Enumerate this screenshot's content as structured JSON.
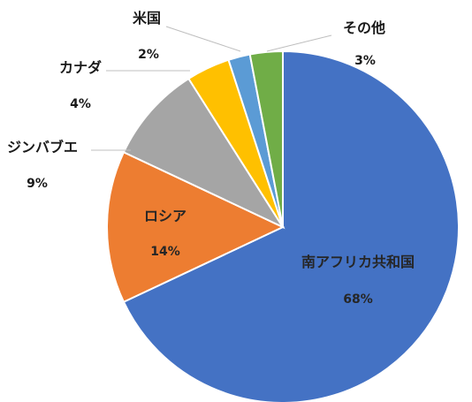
{
  "chart_data": {
    "type": "pie",
    "title": "",
    "start_angle_deg": 0,
    "direction": "clockwise",
    "slices": [
      {
        "label": "南アフリカ共和国",
        "value": 68,
        "pct_label": "68%",
        "color": "#4472C4"
      },
      {
        "label": "ロシア",
        "value": 14,
        "pct_label": "14%",
        "color": "#ED7D31"
      },
      {
        "label": "ジンバブエ",
        "value": 9,
        "pct_label": "9%",
        "color": "#A5A5A5"
      },
      {
        "label": "カナダ",
        "value": 4,
        "pct_label": "4%",
        "color": "#FFC000"
      },
      {
        "label": "米国",
        "value": 2,
        "pct_label": "2%",
        "color": "#5B9BD5"
      },
      {
        "label": "その他",
        "value": 3,
        "pct_label": "3%",
        "color": "#70AD47"
      }
    ],
    "legend": "none",
    "data_labels": "category name and percentage"
  }
}
